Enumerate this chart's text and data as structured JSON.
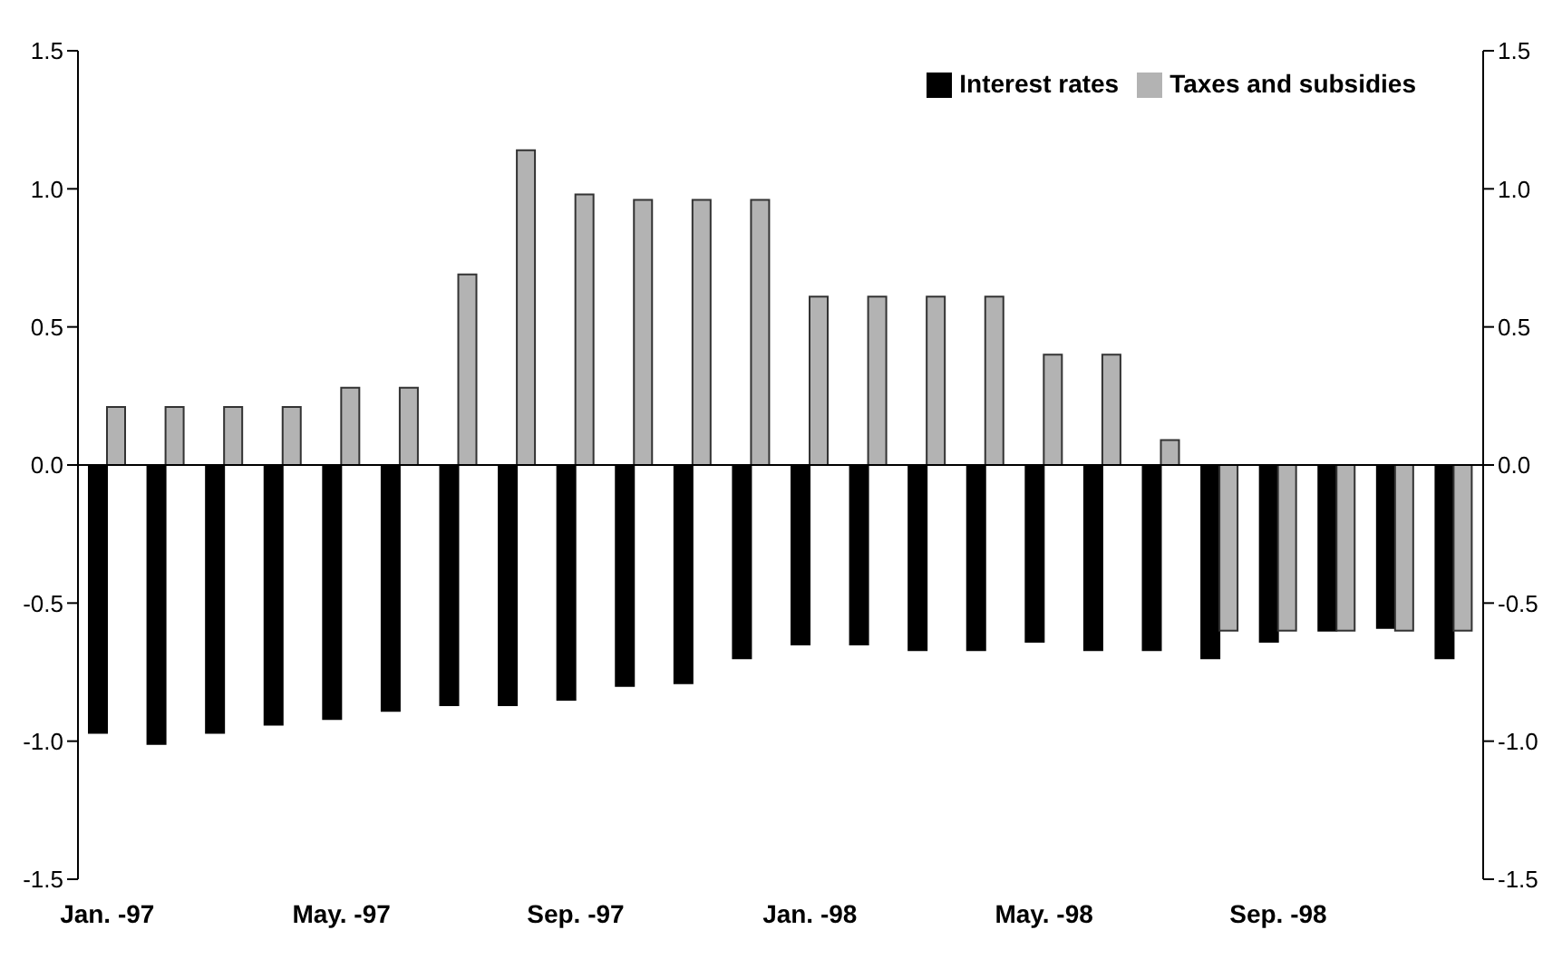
{
  "chart_data": {
    "type": "bar",
    "categories": [
      "Jan. -97",
      null,
      null,
      null,
      "May. -97",
      null,
      null,
      null,
      "Sep. -97",
      null,
      null,
      null,
      "Jan. -98",
      null,
      null,
      null,
      "May. -98",
      null,
      null,
      null,
      "Sep. -98",
      null,
      null,
      null
    ],
    "series": [
      {
        "name": "Interest rates",
        "color": "#000000",
        "values": [
          -0.97,
          -1.01,
          -0.97,
          -0.94,
          -0.92,
          -0.89,
          -0.87,
          -0.87,
          -0.85,
          -0.8,
          -0.79,
          -0.7,
          -0.65,
          -0.65,
          -0.67,
          -0.67,
          -0.64,
          -0.67,
          -0.67,
          -0.7,
          -0.64,
          -0.6,
          -0.59,
          -0.7
        ]
      },
      {
        "name": "Taxes and subsidies",
        "color": "#b3b3b3",
        "values": [
          0.21,
          0.21,
          0.21,
          0.21,
          0.28,
          0.28,
          0.69,
          1.14,
          0.98,
          0.96,
          0.96,
          0.96,
          0.61,
          0.61,
          0.61,
          0.61,
          0.4,
          0.4,
          0.09,
          -0.6,
          -0.6,
          -0.6,
          -0.6,
          -0.6
        ]
      }
    ],
    "ylim": [
      -1.5,
      1.5
    ],
    "yticks": [
      {
        "value": -1.5,
        "label": "-1.5"
      },
      {
        "value": -1,
        "label": "-1.0"
      },
      {
        "value": -0.5,
        "label": "-0.5"
      },
      {
        "value": 0,
        "label": "0.0"
      },
      {
        "value": 0.5,
        "label": "0.5"
      },
      {
        "value": 1,
        "label": "1.0"
      },
      {
        "value": 1.5,
        "label": "1.5"
      }
    ],
    "y2lim": [
      -1.5,
      1.5
    ],
    "y2ticks": [
      {
        "value": -1.5,
        "label": "-1.5"
      },
      {
        "value": -1,
        "label": "-1.0"
      },
      {
        "value": -0.5,
        "label": "-0.5"
      },
      {
        "value": 0,
        "label": "0.0"
      },
      {
        "value": 0.5,
        "label": "0.5"
      },
      {
        "value": 1,
        "label": "1.0"
      },
      {
        "value": 1.5,
        "label": "1.5"
      }
    ],
    "legend": "top right"
  }
}
